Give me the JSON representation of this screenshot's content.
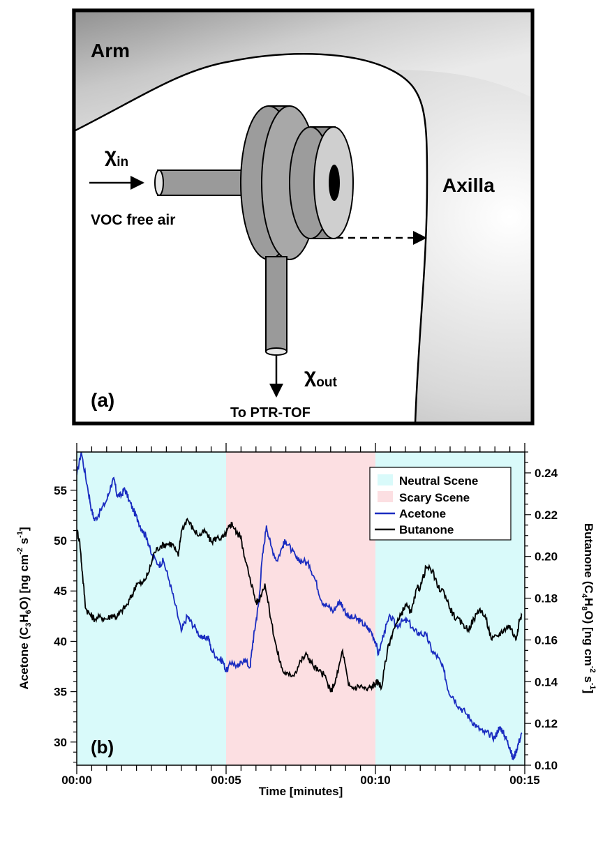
{
  "panel_a": {
    "label": "(a)",
    "arm_label": "Arm",
    "axilla_label": "Axilla",
    "chi_in": "χ",
    "chi_in_sub": "in",
    "chi_out": "χ",
    "chi_out_sub": "out",
    "inlet_label": "VOC free air",
    "outlet_label": "To PTR-TOF"
  },
  "chart_data": {
    "type": "line",
    "panel_label": "(b)",
    "xlabel": "Time [minutes]",
    "ylabel_left": "Acetone (C3H6O) [ng cm-2 s-1]",
    "ylabel_right": "Butanone (C4H8O) [ng cm-2 s-1]",
    "x_ticks": [
      "00:00",
      "00:05",
      "00:10",
      "00:15"
    ],
    "x_range_minutes": [
      0,
      15
    ],
    "y_left_ticks": [
      30,
      35,
      40,
      45,
      50,
      55
    ],
    "y_left_range": [
      27.7,
      58.8
    ],
    "y_right_ticks": [
      "0.10",
      "0.12",
      "0.14",
      "0.16",
      "0.18",
      "0.20",
      "0.22",
      "0.24"
    ],
    "y_right_range": [
      0.1,
      0.25
    ],
    "legend_position": "top-right",
    "shaded_regions": [
      {
        "name": "Neutral Scene",
        "start_min": 0,
        "end_min": 5,
        "color": "#d9fafa"
      },
      {
        "name": "Scary Scene",
        "start_min": 5,
        "end_min": 10,
        "color": "#fcdfe2"
      },
      {
        "name": "Neutral Scene",
        "start_min": 10,
        "end_min": 15,
        "color": "#d9fafa"
      }
    ],
    "legend": [
      {
        "label": "Neutral Scene",
        "kind": "swatch",
        "color": "#d9fafa"
      },
      {
        "label": "Scary Scene",
        "kind": "swatch",
        "color": "#fcdfe2"
      },
      {
        "label": "Acetone",
        "kind": "line",
        "color": "#1a2cc0"
      },
      {
        "label": "Butanone",
        "kind": "line",
        "color": "#000000"
      }
    ],
    "series": [
      {
        "name": "Acetone",
        "axis": "left",
        "color": "#1a2cc0",
        "x": [
          0,
          0.15,
          0.35,
          0.5,
          0.6,
          0.8,
          1.0,
          1.15,
          1.25,
          1.35,
          1.5,
          1.6,
          1.75,
          1.9,
          2.05,
          2.2,
          2.35,
          2.5,
          2.75,
          2.9,
          3.1,
          3.3,
          3.5,
          3.7,
          3.8,
          4.0,
          4.2,
          4.4,
          4.5,
          4.7,
          4.9,
          5.0,
          5.2,
          5.4,
          5.6,
          5.8,
          5.9,
          6.0,
          6.1,
          6.2,
          6.35,
          6.5,
          6.7,
          6.9,
          7.0,
          7.2,
          7.4,
          7.6,
          7.8,
          8.0,
          8.2,
          8.4,
          8.6,
          8.8,
          8.9,
          9.1,
          9.3,
          9.5,
          9.7,
          9.85,
          10.0,
          10.1,
          10.3,
          10.5,
          10.7,
          10.9,
          11.1,
          11.3,
          11.5,
          11.7,
          11.9,
          12.1,
          12.3,
          12.45,
          12.6,
          12.8,
          13.0,
          13.2,
          13.4,
          13.6,
          13.8,
          14.0,
          14.1,
          14.2,
          14.3,
          14.4,
          14.5,
          14.6,
          14.7,
          14.8,
          14.9
        ],
        "values": [
          56.5,
          58.8,
          55.5,
          53.0,
          52.0,
          53.0,
          54.0,
          55.5,
          56.1,
          54.5,
          54.5,
          55.2,
          54.0,
          53.0,
          52.0,
          51.0,
          50.3,
          48.6,
          47.6,
          48.0,
          46.0,
          43.6,
          41.0,
          42.5,
          42.0,
          41.2,
          40.2,
          40.5,
          39.2,
          38.4,
          38.0,
          37.0,
          38.0,
          37.4,
          38.3,
          37.4,
          40.0,
          42.0,
          44.0,
          48.0,
          51.5,
          49.5,
          48.0,
          49.5,
          50.0,
          49.0,
          48.0,
          48.0,
          47.5,
          46.0,
          44.0,
          43.5,
          43.0,
          44.0,
          43.5,
          42.4,
          42.3,
          42.0,
          41.4,
          41.0,
          40.0,
          38.7,
          41.0,
          42.5,
          41.5,
          42.0,
          42.0,
          41.0,
          40.8,
          40.6,
          39.0,
          38.4,
          37.0,
          35.0,
          34.5,
          33.5,
          33.0,
          32.2,
          31.5,
          31.0,
          30.8,
          30.4,
          31.2,
          31.4,
          30.8,
          30.2,
          29.5,
          28.3,
          29.0,
          30.0,
          30.8
        ]
      },
      {
        "name": "Butanone",
        "axis": "right",
        "color": "#000000",
        "x": [
          0,
          0.1,
          0.2,
          0.3,
          0.45,
          0.6,
          0.8,
          1.0,
          1.2,
          1.35,
          1.5,
          1.7,
          1.9,
          2.0,
          2.2,
          2.4,
          2.6,
          2.8,
          3.0,
          3.2,
          3.4,
          3.5,
          3.7,
          3.9,
          4.1,
          4.3,
          4.5,
          4.7,
          4.9,
          5.0,
          5.1,
          5.2,
          5.35,
          5.5,
          5.6,
          5.8,
          6.0,
          6.1,
          6.3,
          6.5,
          6.7,
          6.9,
          7.1,
          7.3,
          7.5,
          7.7,
          7.9,
          8.1,
          8.3,
          8.5,
          8.7,
          8.9,
          9.1,
          9.3,
          9.5,
          9.7,
          9.9,
          10.0,
          10.1,
          10.2,
          10.4,
          10.6,
          10.8,
          11.0,
          11.2,
          11.4,
          11.5,
          11.7,
          11.9,
          12.1,
          12.3,
          12.5,
          12.7,
          12.9,
          13.1,
          13.3,
          13.5,
          13.7,
          13.9,
          14.1,
          14.3,
          14.5,
          14.7,
          14.8,
          14.9
        ],
        "values": [
          0.213,
          0.207,
          0.19,
          0.175,
          0.172,
          0.17,
          0.171,
          0.17,
          0.172,
          0.171,
          0.174,
          0.177,
          0.183,
          0.187,
          0.187,
          0.192,
          0.202,
          0.205,
          0.206,
          0.206,
          0.2,
          0.212,
          0.218,
          0.213,
          0.21,
          0.212,
          0.207,
          0.209,
          0.209,
          0.211,
          0.214,
          0.216,
          0.211,
          0.21,
          0.2,
          0.19,
          0.178,
          0.179,
          0.187,
          0.17,
          0.155,
          0.145,
          0.143,
          0.144,
          0.15,
          0.153,
          0.148,
          0.145,
          0.143,
          0.135,
          0.142,
          0.155,
          0.138,
          0.137,
          0.138,
          0.136,
          0.138,
          0.139,
          0.14,
          0.137,
          0.155,
          0.165,
          0.17,
          0.177,
          0.173,
          0.185,
          0.185,
          0.195,
          0.193,
          0.185,
          0.183,
          0.175,
          0.17,
          0.168,
          0.165,
          0.17,
          0.175,
          0.17,
          0.16,
          0.162,
          0.165,
          0.167,
          0.16,
          0.168,
          0.172
        ]
      }
    ]
  }
}
